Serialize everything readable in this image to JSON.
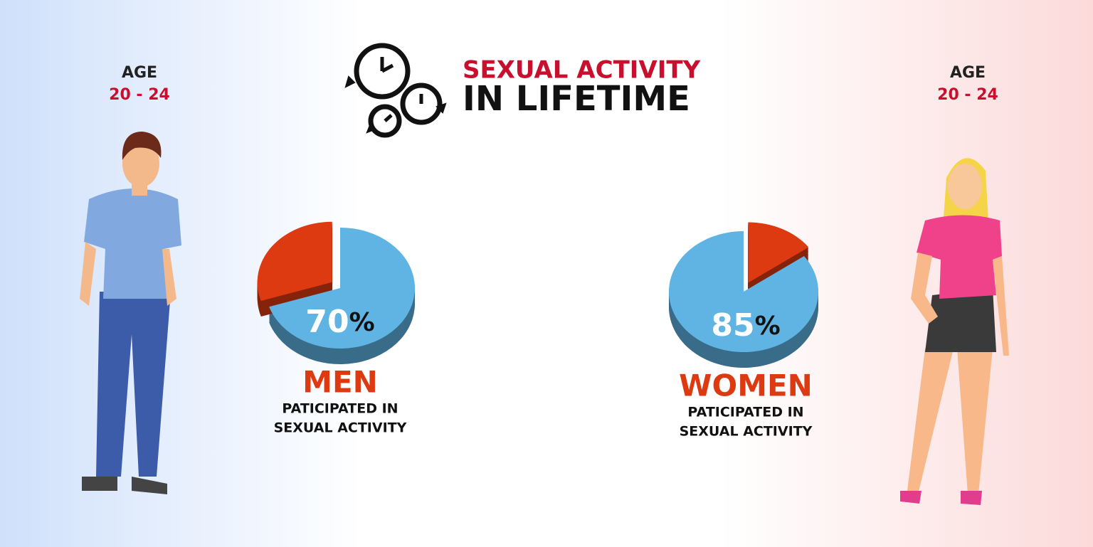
{
  "header": {
    "title_line1": "SEXUAL ACTIVITY",
    "title_line2": "IN LIFETIME"
  },
  "men_age": {
    "label": "AGE",
    "range": "20 - 24"
  },
  "women_age": {
    "label": "AGE",
    "range": "20 - 24"
  },
  "chart_data": [
    {
      "type": "pie",
      "title": "MEN",
      "subtitle": [
        "PATICIPATED IN",
        "SEXUAL ACTIVITY"
      ],
      "values": [
        70,
        30
      ],
      "value_labels": [
        "70%",
        null
      ],
      "colors": [
        "#5fb4e3",
        "#de3a12"
      ]
    },
    {
      "type": "pie",
      "title": "WOMEN",
      "subtitle": [
        "PATICIPATED IN",
        "SEXUAL ACTIVITY"
      ],
      "values": [
        15,
        85
      ],
      "value_labels": [
        null,
        "85%"
      ],
      "colors": [
        "#de3a12",
        "#5fb4e3"
      ]
    }
  ]
}
